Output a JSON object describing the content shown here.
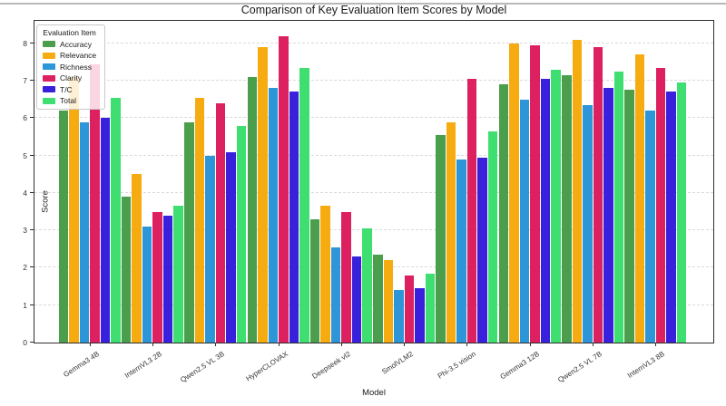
{
  "figure": {
    "title": "Comparison of Key Evaluation Item Scores by Model",
    "xlabel": "Model",
    "ylabel": "Score"
  },
  "legend": {
    "title": "Evaluation Item"
  },
  "chart_data": {
    "type": "bar",
    "title": "Comparison of Key Evaluation Item Scores by Model",
    "xlabel": "Model",
    "ylabel": "Score",
    "ylim": [
      0,
      8.65
    ],
    "yticks": [
      0,
      1,
      2,
      3,
      4,
      5,
      6,
      7,
      8
    ],
    "grid": "horizontal dashed gridlines at each integer",
    "legend_title": "Evaluation Item",
    "legend_position": "upper left",
    "categories": [
      "Gemma3 4B",
      "InternVL3 2B",
      "Qwen2.5 VL 3B",
      "HyperCLOVAX",
      "Deepseek vl2",
      "SmolVLM2",
      "Phi-3.5 vision",
      "Gemma3 12B",
      "Qwen2.5 VL 7B",
      "InternVL3 8B"
    ],
    "series": [
      {
        "name": "Accuracy",
        "color": "#4a9e4c",
        "values": [
          6.2,
          3.9,
          5.9,
          7.1,
          3.3,
          2.35,
          5.55,
          6.9,
          7.15,
          6.75
        ]
      },
      {
        "name": "Relevance",
        "color": "#f6ac11",
        "values": [
          7.1,
          4.5,
          6.55,
          7.9,
          3.65,
          2.2,
          5.9,
          8.0,
          8.1,
          7.7
        ]
      },
      {
        "name": "Richness",
        "color": "#2d96d8",
        "values": [
          5.9,
          3.1,
          5.0,
          6.8,
          2.55,
          1.4,
          4.9,
          6.5,
          6.35,
          6.2
        ]
      },
      {
        "name": "Clarity",
        "color": "#dd205f",
        "values": [
          7.45,
          3.5,
          6.4,
          8.2,
          3.5,
          1.8,
          7.05,
          7.95,
          7.9,
          7.35
        ]
      },
      {
        "name": "T/C",
        "color": "#3820dc",
        "values": [
          6.0,
          3.4,
          5.1,
          6.7,
          2.3,
          1.45,
          4.95,
          7.05,
          6.8,
          6.7
        ]
      },
      {
        "name": "Total",
        "color": "#3edf70",
        "values": [
          6.55,
          3.65,
          5.8,
          7.35,
          3.05,
          1.85,
          5.65,
          7.3,
          7.25,
          6.95
        ]
      }
    ]
  }
}
